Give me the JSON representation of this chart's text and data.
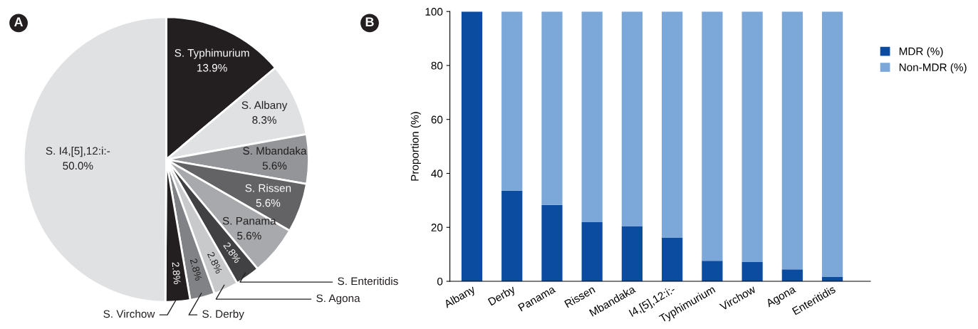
{
  "chart_data": [
    {
      "type": "pie",
      "annotations": [
        "A"
      ],
      "categories": [
        "S. Typhimurium",
        "S. Albany",
        "S. Mbandaka",
        "S. Rissen",
        "S. Panama",
        "S. Enteritidis",
        "S. Agona",
        "S. Derby",
        "S. Virchow",
        "S. I4,[5],12:i:-"
      ],
      "values": [
        13.9,
        8.3,
        5.6,
        5.6,
        5.6,
        2.8,
        2.8,
        2.8,
        2.8,
        50.0
      ],
      "value_labels": [
        "13.9%",
        "8.3%",
        "5.6%",
        "5.6%",
        "5.6%",
        "2.8%",
        "2.8%",
        "2.8%",
        "2.8%",
        "50.0%"
      ],
      "colors": [
        "#231f20",
        "#e0e1e3",
        "#939598",
        "#636366",
        "#a7a9ac",
        "#414042",
        "#c8c9cb",
        "#808285",
        "#231f20",
        "#e0e1e3"
      ]
    },
    {
      "type": "bar",
      "stacked": true,
      "annotations": [
        "B"
      ],
      "ylabel": "Proportion (%)",
      "categories": [
        "Albany",
        "Derby",
        "Panama",
        "Rissen",
        "Mbandaka",
        "I4,[5],12:i:-",
        "Typhimurium",
        "Virchow",
        "Agona",
        "Enteritidis"
      ],
      "ylim": [
        0,
        100
      ],
      "yticks": [
        0,
        20,
        40,
        60,
        80,
        100
      ],
      "grid": false,
      "legend": "right",
      "series": [
        {
          "name": "MDR (%)",
          "color": "#0c4ca0",
          "values": [
            100,
            33.6,
            28.3,
            21.9,
            20.3,
            16.1,
            7.6,
            7.1,
            4.4,
            1.6
          ]
        },
        {
          "name": "Non-MDR (%)",
          "color": "#7ba7d9",
          "values": [
            0,
            66.4,
            71.7,
            78.1,
            79.7,
            83.9,
            92.4,
            92.9,
            95.6,
            98.4
          ]
        }
      ]
    }
  ]
}
